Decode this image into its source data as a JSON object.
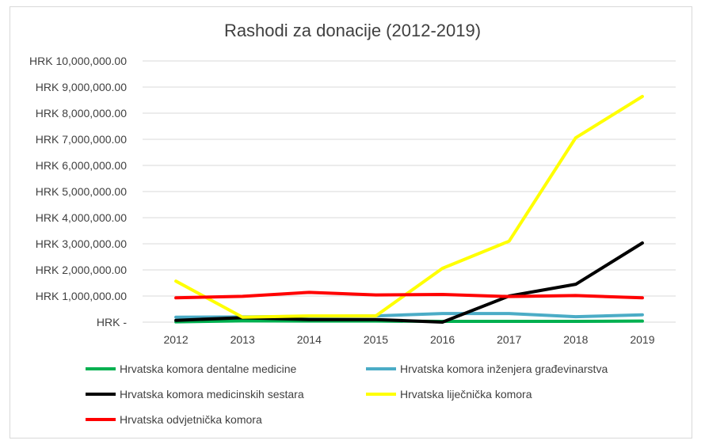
{
  "chart_data": {
    "type": "line",
    "title": "Rashodi za donacije (2012-2019)",
    "xlabel": "",
    "ylabel": "",
    "categories": [
      "2012",
      "2013",
      "2014",
      "2015",
      "2016",
      "2017",
      "2018",
      "2019"
    ],
    "ylim": [
      0,
      10000000
    ],
    "yticks": [
      0,
      1000000,
      2000000,
      3000000,
      4000000,
      5000000,
      6000000,
      7000000,
      8000000,
      9000000,
      10000000
    ],
    "ytick_labels": [
      "HRK -",
      "HRK 1,000,000.00",
      "HRK 2,000,000.00",
      "HRK 3,000,000.00",
      "HRK 4,000,000.00",
      "HRK 5,000,000.00",
      "HRK 6,000,000.00",
      "HRK 7,000,000.00",
      "HRK 8,000,000.00",
      "HRK 9,000,000.00",
      "HRK 10,000,000.00"
    ],
    "grid": true,
    "legend_position": "bottom",
    "series": [
      {
        "name": "Hrvatska komora dentalne medicine",
        "color": "#00b050",
        "values": [
          10000,
          50000,
          40000,
          40000,
          30000,
          30000,
          30000,
          40000
        ]
      },
      {
        "name": "Hrvatska komora inženjera građevinarstva",
        "color": "#4bacc6",
        "values": [
          190000,
          200000,
          220000,
          240000,
          330000,
          330000,
          210000,
          280000
        ]
      },
      {
        "name": "Hrvatska komora medicinskih sestara",
        "color": "#000000",
        "values": [
          70000,
          170000,
          100000,
          100000,
          0,
          1000000,
          1450000,
          3030000
        ]
      },
      {
        "name": "Hrvatska liječnička komora",
        "color": "#ffff00",
        "values": [
          1570000,
          190000,
          240000,
          240000,
          2060000,
          3100000,
          7060000,
          8640000
        ]
      },
      {
        "name": "Hrvatska odvjetnička komora",
        "color": "#ff0000",
        "values": [
          930000,
          990000,
          1140000,
          1040000,
          1060000,
          980000,
          1020000,
          930000
        ]
      }
    ]
  }
}
